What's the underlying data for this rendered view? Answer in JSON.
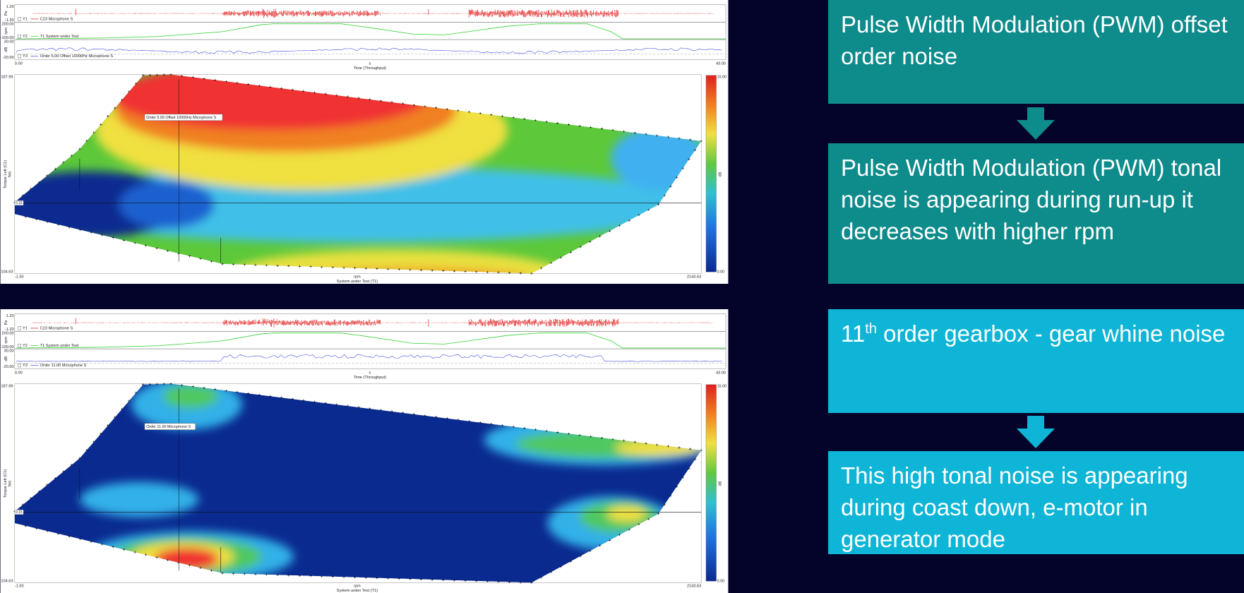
{
  "panels": [
    {
      "traces": [
        {
          "legend": "Y1",
          "name": "C23 Microphone S",
          "unit": "Pa",
          "max": "1.20",
          "min": "-1.20"
        },
        {
          "legend": "Y2",
          "name": "T1 System under Test",
          "unit": "rpm",
          "max": "200.00",
          "min": "-100.00"
        },
        {
          "legend": "Y3",
          "name": "Order 5.00 Offset 10000Hz Microphone S",
          "unit": "dB",
          "max": "30.00",
          "min": "-20.00"
        }
      ],
      "time_axis": {
        "start": "0.00",
        "end": "43.00",
        "unit": "s",
        "label": "Time (Throughput)"
      },
      "map": {
        "annotation": "Order 5.00 Offset 10000Hz Microphone S",
        "y_top": "187.99",
        "y_bottom": "104.63",
        "y_label": "Torque Left (C1)",
        "y_unit": "Nm",
        "ref_value": "0.15",
        "x_start": "-1.50",
        "x_end": "2143.63",
        "x_unit": "rpm",
        "x_label": "System under Test (T1)",
        "scale_max": "15.00",
        "scale_min": "0.00",
        "scale_unit": "dB"
      }
    },
    {
      "traces": [
        {
          "legend": "Y1",
          "name": "C23 Microphone S",
          "unit": "Pa",
          "max": "1.20",
          "min": "-1.20"
        },
        {
          "legend": "Y2",
          "name": "T1 System under Test",
          "unit": "rpm",
          "max": "200.00",
          "min": "-100.00"
        },
        {
          "legend": "Y3",
          "name": "Order 11.00 Microphone S",
          "unit": "dB",
          "max": "30.00",
          "min": "-20.00"
        }
      ],
      "time_axis": {
        "start": "0.00",
        "end": "43.00",
        "unit": "s",
        "label": "Time (Throughput)"
      },
      "map": {
        "annotation": "Order 11.00 Microphone S",
        "y_top": "187.99",
        "y_bottom": "104.63",
        "y_label": "Torque Left (C1)",
        "y_unit": "Nm",
        "ref_value": "0.15",
        "x_start": "-1.50",
        "x_end": "2143.63",
        "x_unit": "rpm",
        "x_label": "System under Test (T1)",
        "scale_max": "15.00",
        "scale_min": "0.00",
        "scale_unit": "dB"
      }
    }
  ],
  "steps": [
    {
      "text": "Pulse Width Modulation (PWM) offset order noise"
    },
    {
      "text": "Pulse Width Modulation (PWM) tonal noise is appearing during run-up it decreases with higher rpm"
    },
    {
      "ordinal": "11",
      "sup": "th",
      "text": " order gearbox - gear whine noise"
    },
    {
      "text": "This high tonal noise is appearing during coast down, e-motor in generator mode"
    }
  ]
}
